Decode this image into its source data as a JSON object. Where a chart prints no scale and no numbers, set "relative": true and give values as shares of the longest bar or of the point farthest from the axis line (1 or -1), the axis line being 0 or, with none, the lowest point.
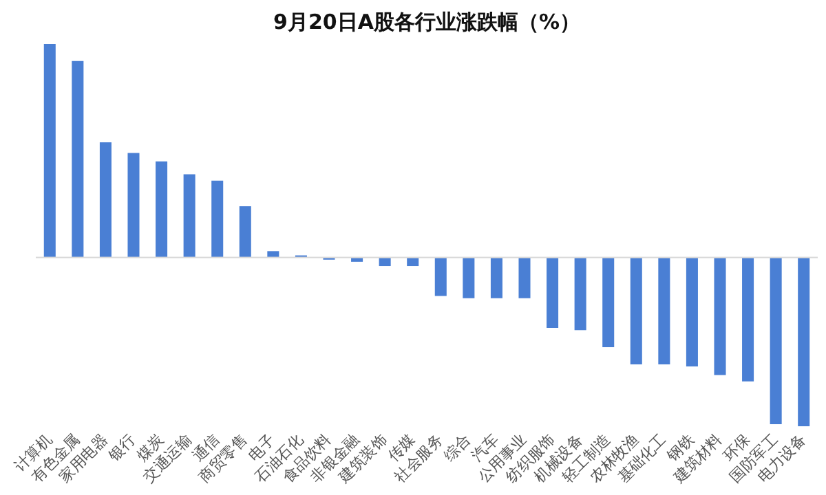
{
  "chart_data": {
    "type": "bar",
    "title": "9月20日A股各行业涨跌幅（%）",
    "relative": true,
    "color": "#4a7fd4",
    "grid": false,
    "legend": false,
    "categories": [
      "计算机",
      "有色金属",
      "家用电器",
      "银行",
      "煤炭",
      "交通运输",
      "通信",
      "商贸零售",
      "电子",
      "石油石化",
      "食品饮料",
      "非银金融",
      "建筑装饰",
      "传媒",
      "社会服务",
      "综合",
      "汽车",
      "公用事业",
      "纺织服饰",
      "机械设备",
      "轻工制造",
      "农林牧渔",
      "基础化工",
      "钢铁",
      "建筑材料",
      "环保",
      "国防军工",
      "电力设备"
    ],
    "values": [
      1,
      0.92,
      0.54,
      0.49,
      0.45,
      0.39,
      0.36,
      0.24,
      0.03,
      0.01,
      -0.01,
      -0.02,
      -0.04,
      -0.04,
      -0.18,
      -0.19,
      -0.19,
      -0.19,
      -0.33,
      -0.34,
      -0.42,
      -0.5,
      -0.5,
      -0.51,
      -0.55,
      -0.58,
      -0.78,
      -0.79
    ]
  }
}
